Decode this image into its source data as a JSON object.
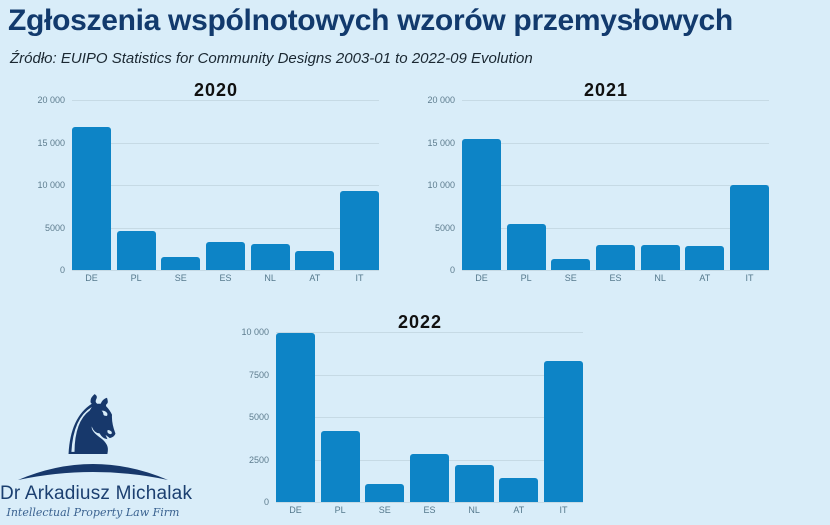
{
  "page": {
    "title": "Zgłoszenia wspólnotowych wzorów przemysłowych",
    "subtitle": "Źródło: EUIPO Statistics for Community Designs 2003-01 to 2022-09 Evolution"
  },
  "logo": {
    "name": "Dr Arkadiusz Michalak",
    "tagline": "Intellectual Property Law Firm",
    "icon": "chess-knight-icon",
    "knight_glyph": "♞"
  },
  "colors": {
    "background": "#d9edf9",
    "bar": "#0d84c6",
    "page_title": "#123a6d",
    "chart_title": "#101010",
    "axis_label": "#5d7c8e",
    "gridline": "#c6dae5",
    "logo_navy": "#17386b"
  },
  "chart_data": [
    {
      "type": "bar",
      "title": "2020",
      "categories": [
        "DE",
        "PL",
        "SE",
        "ES",
        "NL",
        "AT",
        "IT"
      ],
      "values": [
        16800,
        4600,
        1500,
        3300,
        3100,
        2250,
        9350
      ],
      "xlabel": "",
      "ylabel": "",
      "ylim": [
        0,
        20000
      ],
      "yticks": [
        {
          "value": 0,
          "label": "0"
        },
        {
          "value": 5000,
          "label": "5000"
        },
        {
          "value": 10000,
          "label": "10 000"
        },
        {
          "value": 15000,
          "label": "15 000"
        },
        {
          "value": 20000,
          "label": "20 000"
        }
      ],
      "grid": true,
      "legend": false
    },
    {
      "type": "bar",
      "title": "2021",
      "categories": [
        "DE",
        "PL",
        "SE",
        "ES",
        "NL",
        "AT",
        "IT"
      ],
      "values": [
        15400,
        5400,
        1350,
        3000,
        3000,
        2850,
        10050
      ],
      "xlabel": "",
      "ylabel": "",
      "ylim": [
        0,
        20000
      ],
      "yticks": [
        {
          "value": 0,
          "label": "0"
        },
        {
          "value": 5000,
          "label": "5000"
        },
        {
          "value": 10000,
          "label": "10 000"
        },
        {
          "value": 15000,
          "label": "15 000"
        },
        {
          "value": 20000,
          "label": "20 000"
        }
      ],
      "grid": true,
      "legend": false
    },
    {
      "type": "bar",
      "title": "2022",
      "categories": [
        "DE",
        "PL",
        "SE",
        "ES",
        "NL",
        "AT",
        "IT"
      ],
      "values": [
        9950,
        4200,
        1050,
        2850,
        2150,
        1400,
        8280
      ],
      "xlabel": "",
      "ylabel": "",
      "ylim": [
        0,
        10000
      ],
      "yticks": [
        {
          "value": 0,
          "label": "0"
        },
        {
          "value": 2500,
          "label": "2500"
        },
        {
          "value": 5000,
          "label": "5000"
        },
        {
          "value": 7500,
          "label": "7500"
        },
        {
          "value": 10000,
          "label": "10 000"
        }
      ],
      "grid": true,
      "legend": false
    }
  ]
}
